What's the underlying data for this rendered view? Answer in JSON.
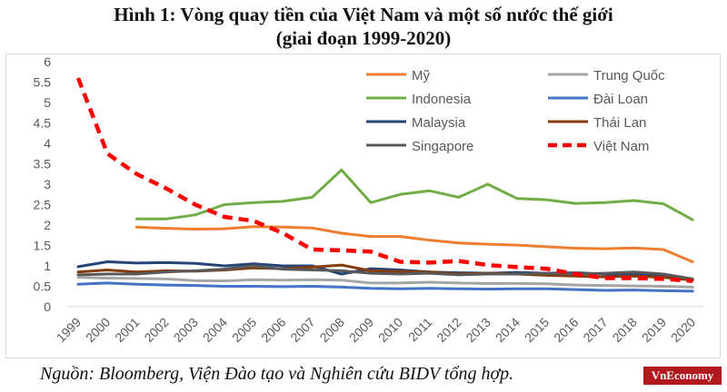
{
  "title_line1": "Hình 1: Vòng quay tiền của Việt Nam và một số nước thế giới",
  "title_line2": "(giai đoạn 1999-2020)",
  "source": "Nguồn: Bloomberg, Viện Đào tạo và Nghiên cứu BIDV tổng hợp.",
  "brand": "VnEconomy",
  "chart_data": {
    "type": "line",
    "title": "Hình 1: Vòng quay tiền của Việt Nam và một số nước thế giới (giai đoạn 1999-2020)",
    "xlabel": "",
    "ylabel": "",
    "ylim": [
      0,
      6
    ],
    "yticks": [
      "0",
      "0.5",
      "1",
      "1.5",
      "2",
      "2.5",
      "3",
      "3.5",
      "4",
      "4.5",
      "5",
      "5.5",
      "6"
    ],
    "categories": [
      "1999",
      "2000",
      "2001",
      "2002",
      "2003",
      "2004",
      "2005",
      "2006",
      "2007",
      "2008",
      "2009",
      "2010",
      "2011",
      "2012",
      "2013",
      "2014",
      "2015",
      "2016",
      "2017",
      "2018",
      "2019",
      "2020"
    ],
    "grid": false,
    "legend_position": "top-right",
    "series": [
      {
        "name": "Mỹ",
        "color": "#ed7d31",
        "width": 3,
        "dash": "",
        "values": [
          null,
          null,
          1.95,
          1.92,
          1.9,
          1.91,
          1.96,
          1.95,
          1.93,
          1.8,
          1.72,
          1.72,
          1.63,
          1.56,
          1.53,
          1.51,
          1.47,
          1.43,
          1.42,
          1.44,
          1.4,
          1.1
        ]
      },
      {
        "name": "Trung Quốc",
        "color": "#a5a5a5",
        "width": 3,
        "dash": "",
        "values": [
          0.72,
          0.7,
          0.69,
          0.68,
          0.64,
          0.63,
          0.66,
          0.65,
          0.66,
          0.65,
          0.58,
          0.58,
          0.6,
          0.58,
          0.57,
          0.57,
          0.56,
          0.53,
          0.52,
          0.51,
          0.5,
          0.48
        ]
      },
      {
        "name": "Indonesia",
        "color": "#70ad47",
        "width": 3,
        "dash": "",
        "values": [
          null,
          null,
          2.15,
          2.15,
          2.25,
          2.5,
          2.55,
          2.58,
          2.68,
          3.35,
          2.55,
          2.75,
          2.84,
          2.68,
          3.0,
          2.65,
          2.62,
          2.53,
          2.55,
          2.6,
          2.52,
          2.13
        ]
      },
      {
        "name": "Đài Loan",
        "color": "#4472c4",
        "width": 3,
        "dash": "",
        "values": [
          0.55,
          0.58,
          0.55,
          0.53,
          0.52,
          0.5,
          0.5,
          0.49,
          0.5,
          0.48,
          0.45,
          0.44,
          0.45,
          0.44,
          0.43,
          0.44,
          0.44,
          0.42,
          0.4,
          0.41,
          0.39,
          0.38
        ]
      },
      {
        "name": "Malaysia",
        "color": "#264478",
        "width": 3,
        "dash": "",
        "values": [
          0.98,
          1.1,
          1.07,
          1.08,
          1.06,
          1.0,
          1.05,
          1.0,
          1.0,
          0.8,
          0.93,
          0.9,
          0.85,
          0.83,
          0.82,
          0.84,
          0.82,
          0.83,
          0.8,
          0.8,
          0.75,
          0.65
        ]
      },
      {
        "name": "Thái Lan",
        "color": "#843c0c",
        "width": 3,
        "dash": "",
        "values": [
          0.85,
          0.9,
          0.85,
          0.88,
          0.87,
          0.9,
          0.95,
          0.93,
          0.97,
          1.02,
          0.88,
          0.86,
          0.85,
          0.8,
          0.82,
          0.8,
          0.77,
          0.75,
          0.73,
          0.75,
          0.72,
          0.65
        ]
      },
      {
        "name": "Singapore",
        "color": "#595959",
        "width": 3,
        "dash": "",
        "values": [
          0.78,
          0.8,
          0.8,
          0.85,
          0.88,
          0.92,
          1.0,
          0.92,
          0.9,
          0.88,
          0.82,
          0.8,
          0.82,
          0.78,
          0.8,
          0.8,
          0.82,
          0.8,
          0.82,
          0.85,
          0.8,
          0.68
        ]
      },
      {
        "name": "Việt Nam",
        "color": "#ff0000",
        "width": 4.5,
        "dash": "11,7",
        "values": [
          5.6,
          3.75,
          3.25,
          2.9,
          2.5,
          2.2,
          2.1,
          1.8,
          1.4,
          1.38,
          1.35,
          1.1,
          1.08,
          1.12,
          1.02,
          0.97,
          0.93,
          0.8,
          0.7,
          0.7,
          0.68,
          0.63
        ]
      }
    ]
  }
}
